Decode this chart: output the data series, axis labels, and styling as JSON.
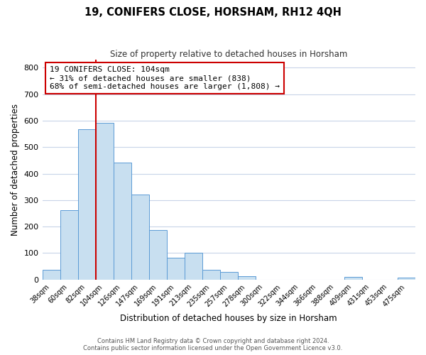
{
  "title": "19, CONIFERS CLOSE, HORSHAM, RH12 4QH",
  "subtitle": "Size of property relative to detached houses in Horsham",
  "xlabel": "Distribution of detached houses by size in Horsham",
  "ylabel": "Number of detached properties",
  "bar_labels": [
    "38sqm",
    "60sqm",
    "82sqm",
    "104sqm",
    "126sqm",
    "147sqm",
    "169sqm",
    "191sqm",
    "213sqm",
    "235sqm",
    "257sqm",
    "278sqm",
    "300sqm",
    "322sqm",
    "344sqm",
    "366sqm",
    "388sqm",
    "409sqm",
    "431sqm",
    "453sqm",
    "475sqm"
  ],
  "bar_heights": [
    37,
    262,
    568,
    591,
    441,
    322,
    187,
    82,
    100,
    37,
    30,
    14,
    0,
    0,
    0,
    0,
    0,
    10,
    0,
    0,
    8
  ],
  "bar_color": "#c8dff0",
  "bar_edge_color": "#5b9bd5",
  "vline_x_index": 3,
  "vline_color": "#cc0000",
  "annotation_title": "19 CONIFERS CLOSE: 104sqm",
  "annotation_line1": "← 31% of detached houses are smaller (838)",
  "annotation_line2": "68% of semi-detached houses are larger (1,808) →",
  "annotation_box_color": "#ffffff",
  "annotation_box_edge": "#cc0000",
  "ylim": [
    0,
    830
  ],
  "yticks": [
    0,
    100,
    200,
    300,
    400,
    500,
    600,
    700,
    800
  ],
  "footer_line1": "Contains HM Land Registry data © Crown copyright and database right 2024.",
  "footer_line2": "Contains public sector information licensed under the Open Government Licence v3.0.",
  "background_color": "#ffffff",
  "grid_color": "#c8d4e8"
}
